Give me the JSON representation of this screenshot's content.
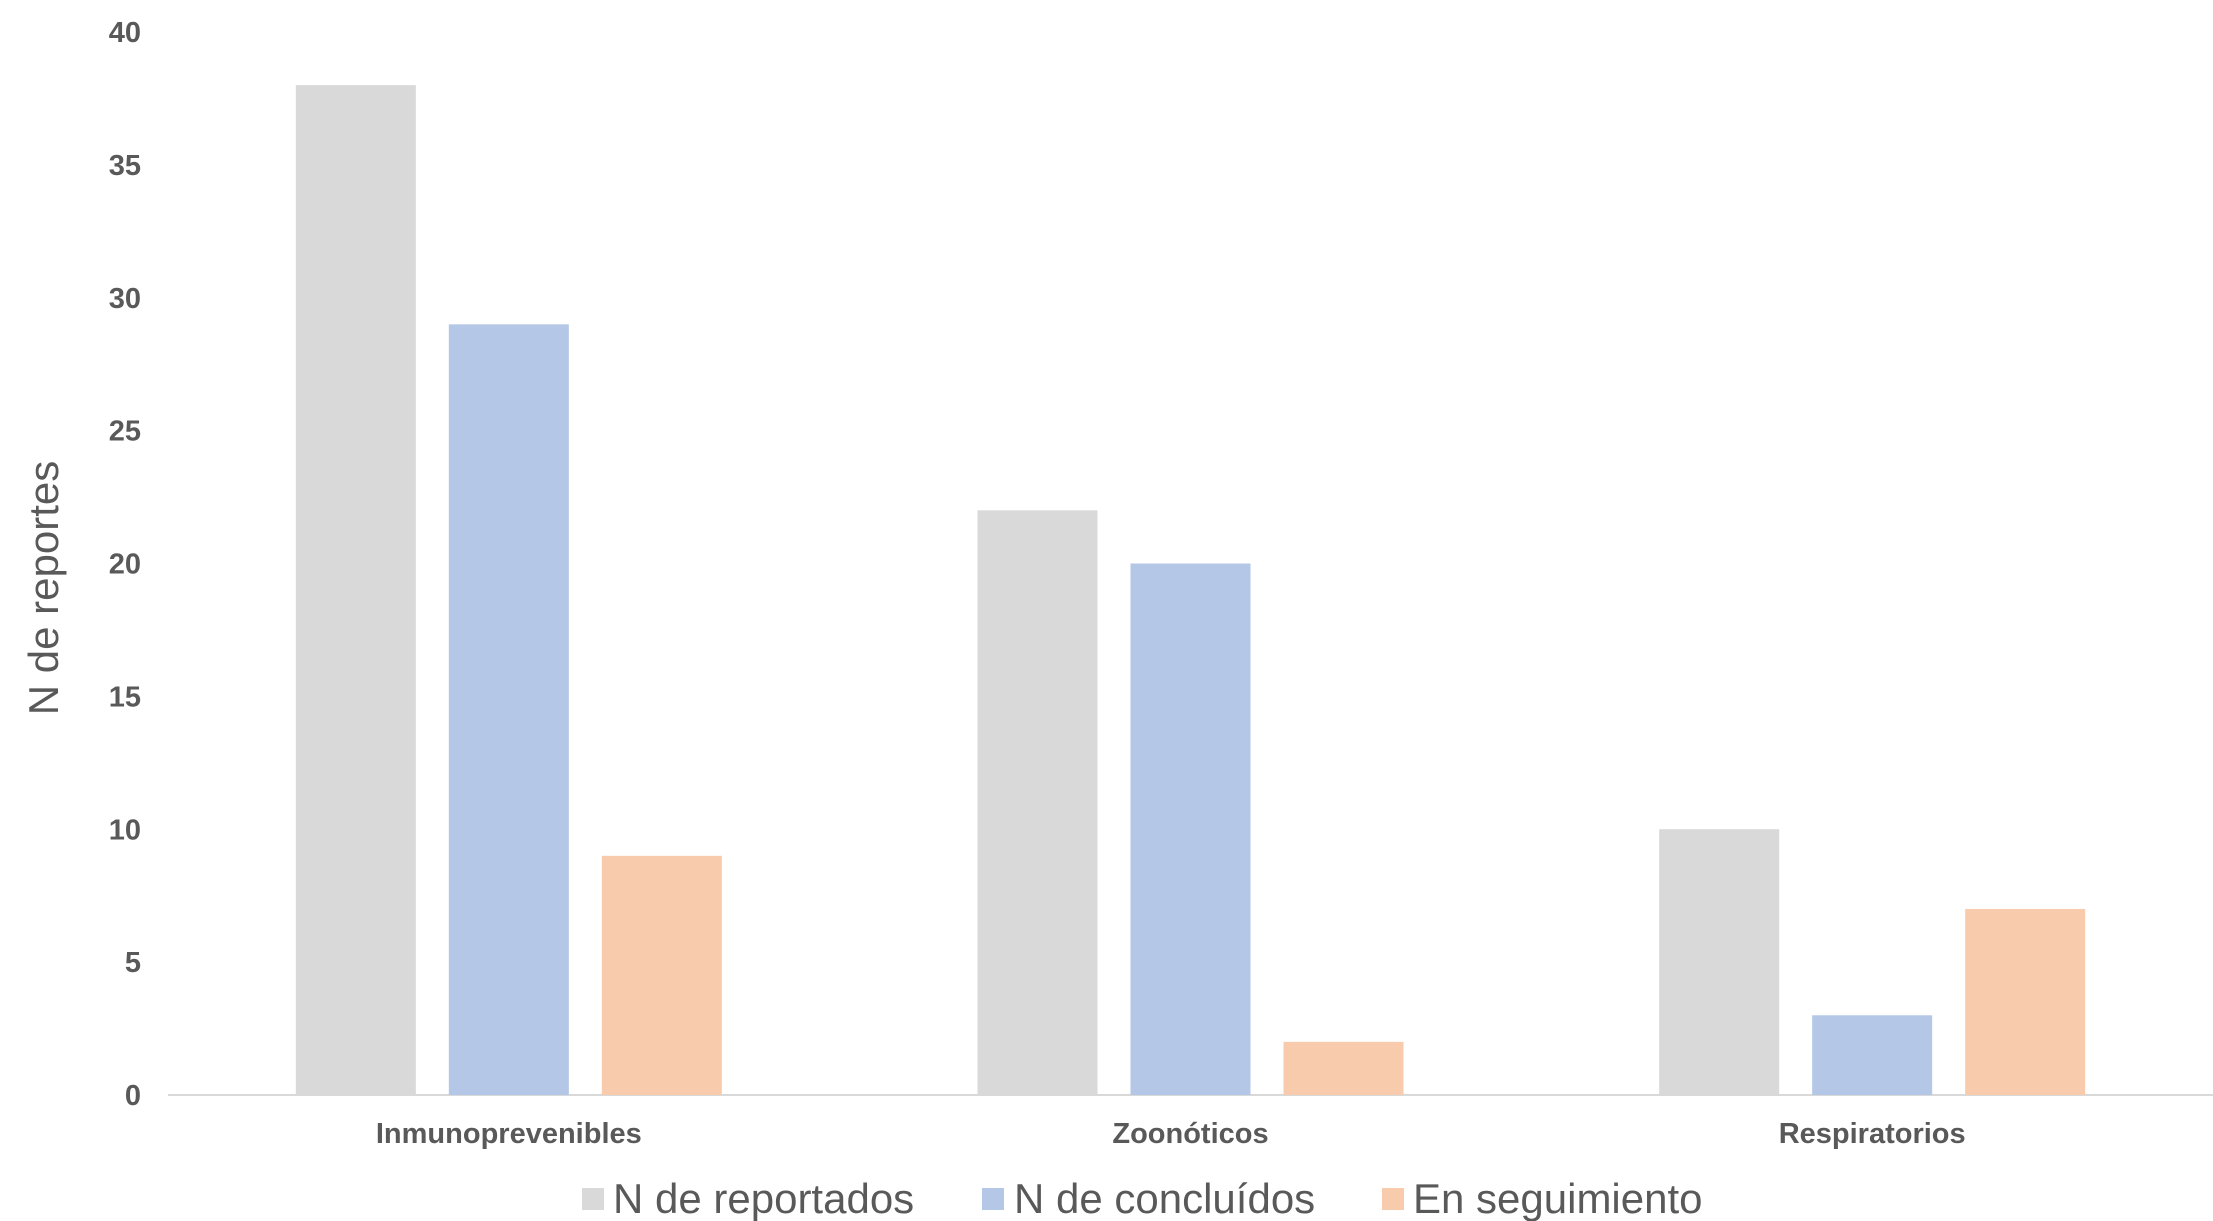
{
  "chart_data": {
    "type": "bar",
    "title": "",
    "xlabel": "",
    "ylabel": "N de reportes",
    "ylim": [
      0,
      40
    ],
    "yticks": [
      0,
      5,
      10,
      15,
      20,
      25,
      30,
      35,
      40
    ],
    "grid": false,
    "legend_position": "bottom",
    "categories": [
      "Inmunoprevenibles",
      "Zoonóticos",
      "Respiratorios"
    ],
    "series": [
      {
        "name": "N de reportados",
        "color": "#d9d9d9",
        "values": [
          38,
          22,
          10
        ]
      },
      {
        "name": "N de concluídos",
        "color": "#b4c7e7",
        "values": [
          29,
          20,
          3
        ]
      },
      {
        "name": "En seguimiento",
        "color": "#f8cbad",
        "values": [
          9,
          2,
          7
        ]
      }
    ]
  }
}
